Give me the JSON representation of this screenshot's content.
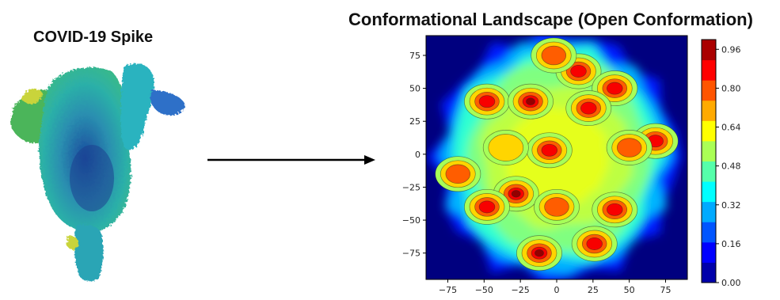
{
  "left_panel": {
    "title": "COVID-19 Spike"
  },
  "right_panel": {
    "title": "Conformational Landscape (Open Conformation)"
  },
  "chart_data": {
    "type": "heatmap",
    "title": "Conformational Landscape (Open Conformation)",
    "xlabel": "",
    "ylabel": "",
    "xlim": [
      -90,
      90
    ],
    "ylim": [
      -95,
      90
    ],
    "x_ticks": [
      -75,
      -50,
      -25,
      0,
      25,
      50,
      75
    ],
    "y_ticks": [
      75,
      50,
      25,
      0,
      -25,
      -50,
      -75
    ],
    "colorbar": {
      "min": 0.0,
      "max": 1.0,
      "ticks": [
        "0.96",
        "0.80",
        "0.64",
        "0.48",
        "0.32",
        "0.16",
        "0.00"
      ],
      "colormap": "jet"
    },
    "peaks": [
      {
        "x": -48,
        "y": 40,
        "value": 0.98
      },
      {
        "x": -18,
        "y": 40,
        "value": 1.0
      },
      {
        "x": 15,
        "y": 63,
        "value": 0.96
      },
      {
        "x": 40,
        "y": 50,
        "value": 0.96
      },
      {
        "x": 22,
        "y": 35,
        "value": 0.9
      },
      {
        "x": 68,
        "y": 10,
        "value": 0.96
      },
      {
        "x": -5,
        "y": 3,
        "value": 0.98
      },
      {
        "x": -28,
        "y": -30,
        "value": 1.0
      },
      {
        "x": -48,
        "y": -40,
        "value": 0.96
      },
      {
        "x": 40,
        "y": -42,
        "value": 0.98
      },
      {
        "x": -12,
        "y": -75,
        "value": 1.0
      },
      {
        "x": 26,
        "y": -68,
        "value": 0.9
      },
      {
        "x": -68,
        "y": -15,
        "value": 0.85
      },
      {
        "x": 50,
        "y": 5,
        "value": 0.85
      },
      {
        "x": -2,
        "y": 75,
        "value": 0.85
      },
      {
        "x": 0,
        "y": -40,
        "value": 0.8
      },
      {
        "x": -35,
        "y": 5,
        "value": 0.75
      }
    ]
  },
  "colors": {
    "background": "#ffffff",
    "low": "#00007f",
    "high": "#7f0000",
    "arrow": "#000000"
  }
}
